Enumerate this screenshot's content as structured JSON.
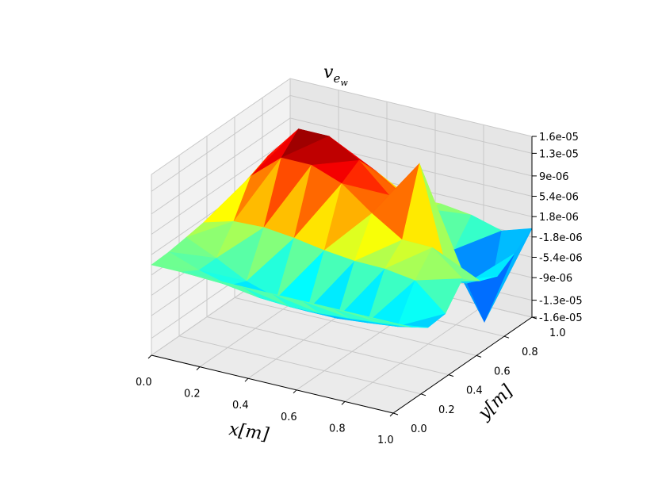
{
  "chart_data": {
    "type": "surface3d",
    "title": "v",
    "title_sub": "e",
    "title_subsub": "w",
    "xlabel": "x[m]",
    "ylabel": "y[m]",
    "zlabel": "",
    "xlim": [
      0,
      1
    ],
    "ylim": [
      0,
      1
    ],
    "zlim": [
      -1.6e-05,
      1.6e-05
    ],
    "x_ticks": [
      "0.0",
      "0.2",
      "0.4",
      "0.6",
      "0.8",
      "1.0"
    ],
    "y_ticks": [
      "0.0",
      "0.2",
      "0.4",
      "0.6",
      "0.8",
      "1.0"
    ],
    "z_ticks": [
      "-1.6e-05",
      "-1.3e-05",
      "-9e-06",
      "-5.4e-06",
      "-1.8e-06",
      "1.8e-06",
      "5.4e-06",
      "9e-06",
      "1.3e-05",
      "1.6e-05"
    ],
    "colormap": "jet",
    "grid": true,
    "x": [
      0.0,
      0.125,
      0.25,
      0.375,
      0.5,
      0.625,
      0.75,
      0.875,
      1.0
    ],
    "y": [
      0.0,
      0.125,
      0.25,
      0.375,
      0.5,
      0.625,
      0.75,
      0.875,
      1.0
    ],
    "z": [
      [
        0.0,
        1.5e-07,
        6e-07,
        1.1e-06,
        1.3e-06,
        9e-07,
        3e-07,
        -2e-07,
        -3e-07
      ],
      [
        0.0,
        -1.8e-06,
        -1.8e-06,
        2.6e-06,
        8.5e-06,
        1e-05,
        6.7e-06,
        1.8e-06,
        -3e-07
      ],
      [
        0.0,
        -3.2e-06,
        -4.6e-06,
        2.8e-06,
        1.3e-05,
        1.6e-05,
        1.1e-05,
        3.2e-06,
        -2e-07
      ],
      [
        0.0,
        -4.1e-06,
        -6.3e-06,
        2.2e-06,
        1.3e-05,
        1.6e-05,
        1.1e-05,
        3.4e-06,
        -1e-07
      ],
      [
        0.0,
        -4.4e-06,
        -7.3e-06,
        1.3e-06,
        1.1e-05,
        1.3e-05,
        8.9e-06,
        2.7e-06,
        1e-07
      ],
      [
        0.0,
        -4.3e-06,
        -7.3e-06,
        7e-07,
        7e-06,
        8.1e-06,
        5.5e-06,
        1.5e-06,
        2e-07
      ],
      [
        0.0,
        -3.9e-06,
        -6.8e-06,
        6e-07,
        3.6e-06,
        1.5e-05,
        1.1e-06,
        -4.5e-06,
        -5e-07
      ],
      [
        0.0,
        -3.4e-06,
        -6.2e-06,
        -2e-07,
        3.5e-06,
        -4.6e-06,
        -7e-06,
        -1.6e-05,
        -2e-06
      ],
      [
        0.0,
        -2.9e-06,
        -5.1e-06,
        -4.8e-06,
        -7e-07,
        -3.2e-06,
        -4.5e-06,
        -2.6e-06,
        -3e-07
      ]
    ]
  }
}
